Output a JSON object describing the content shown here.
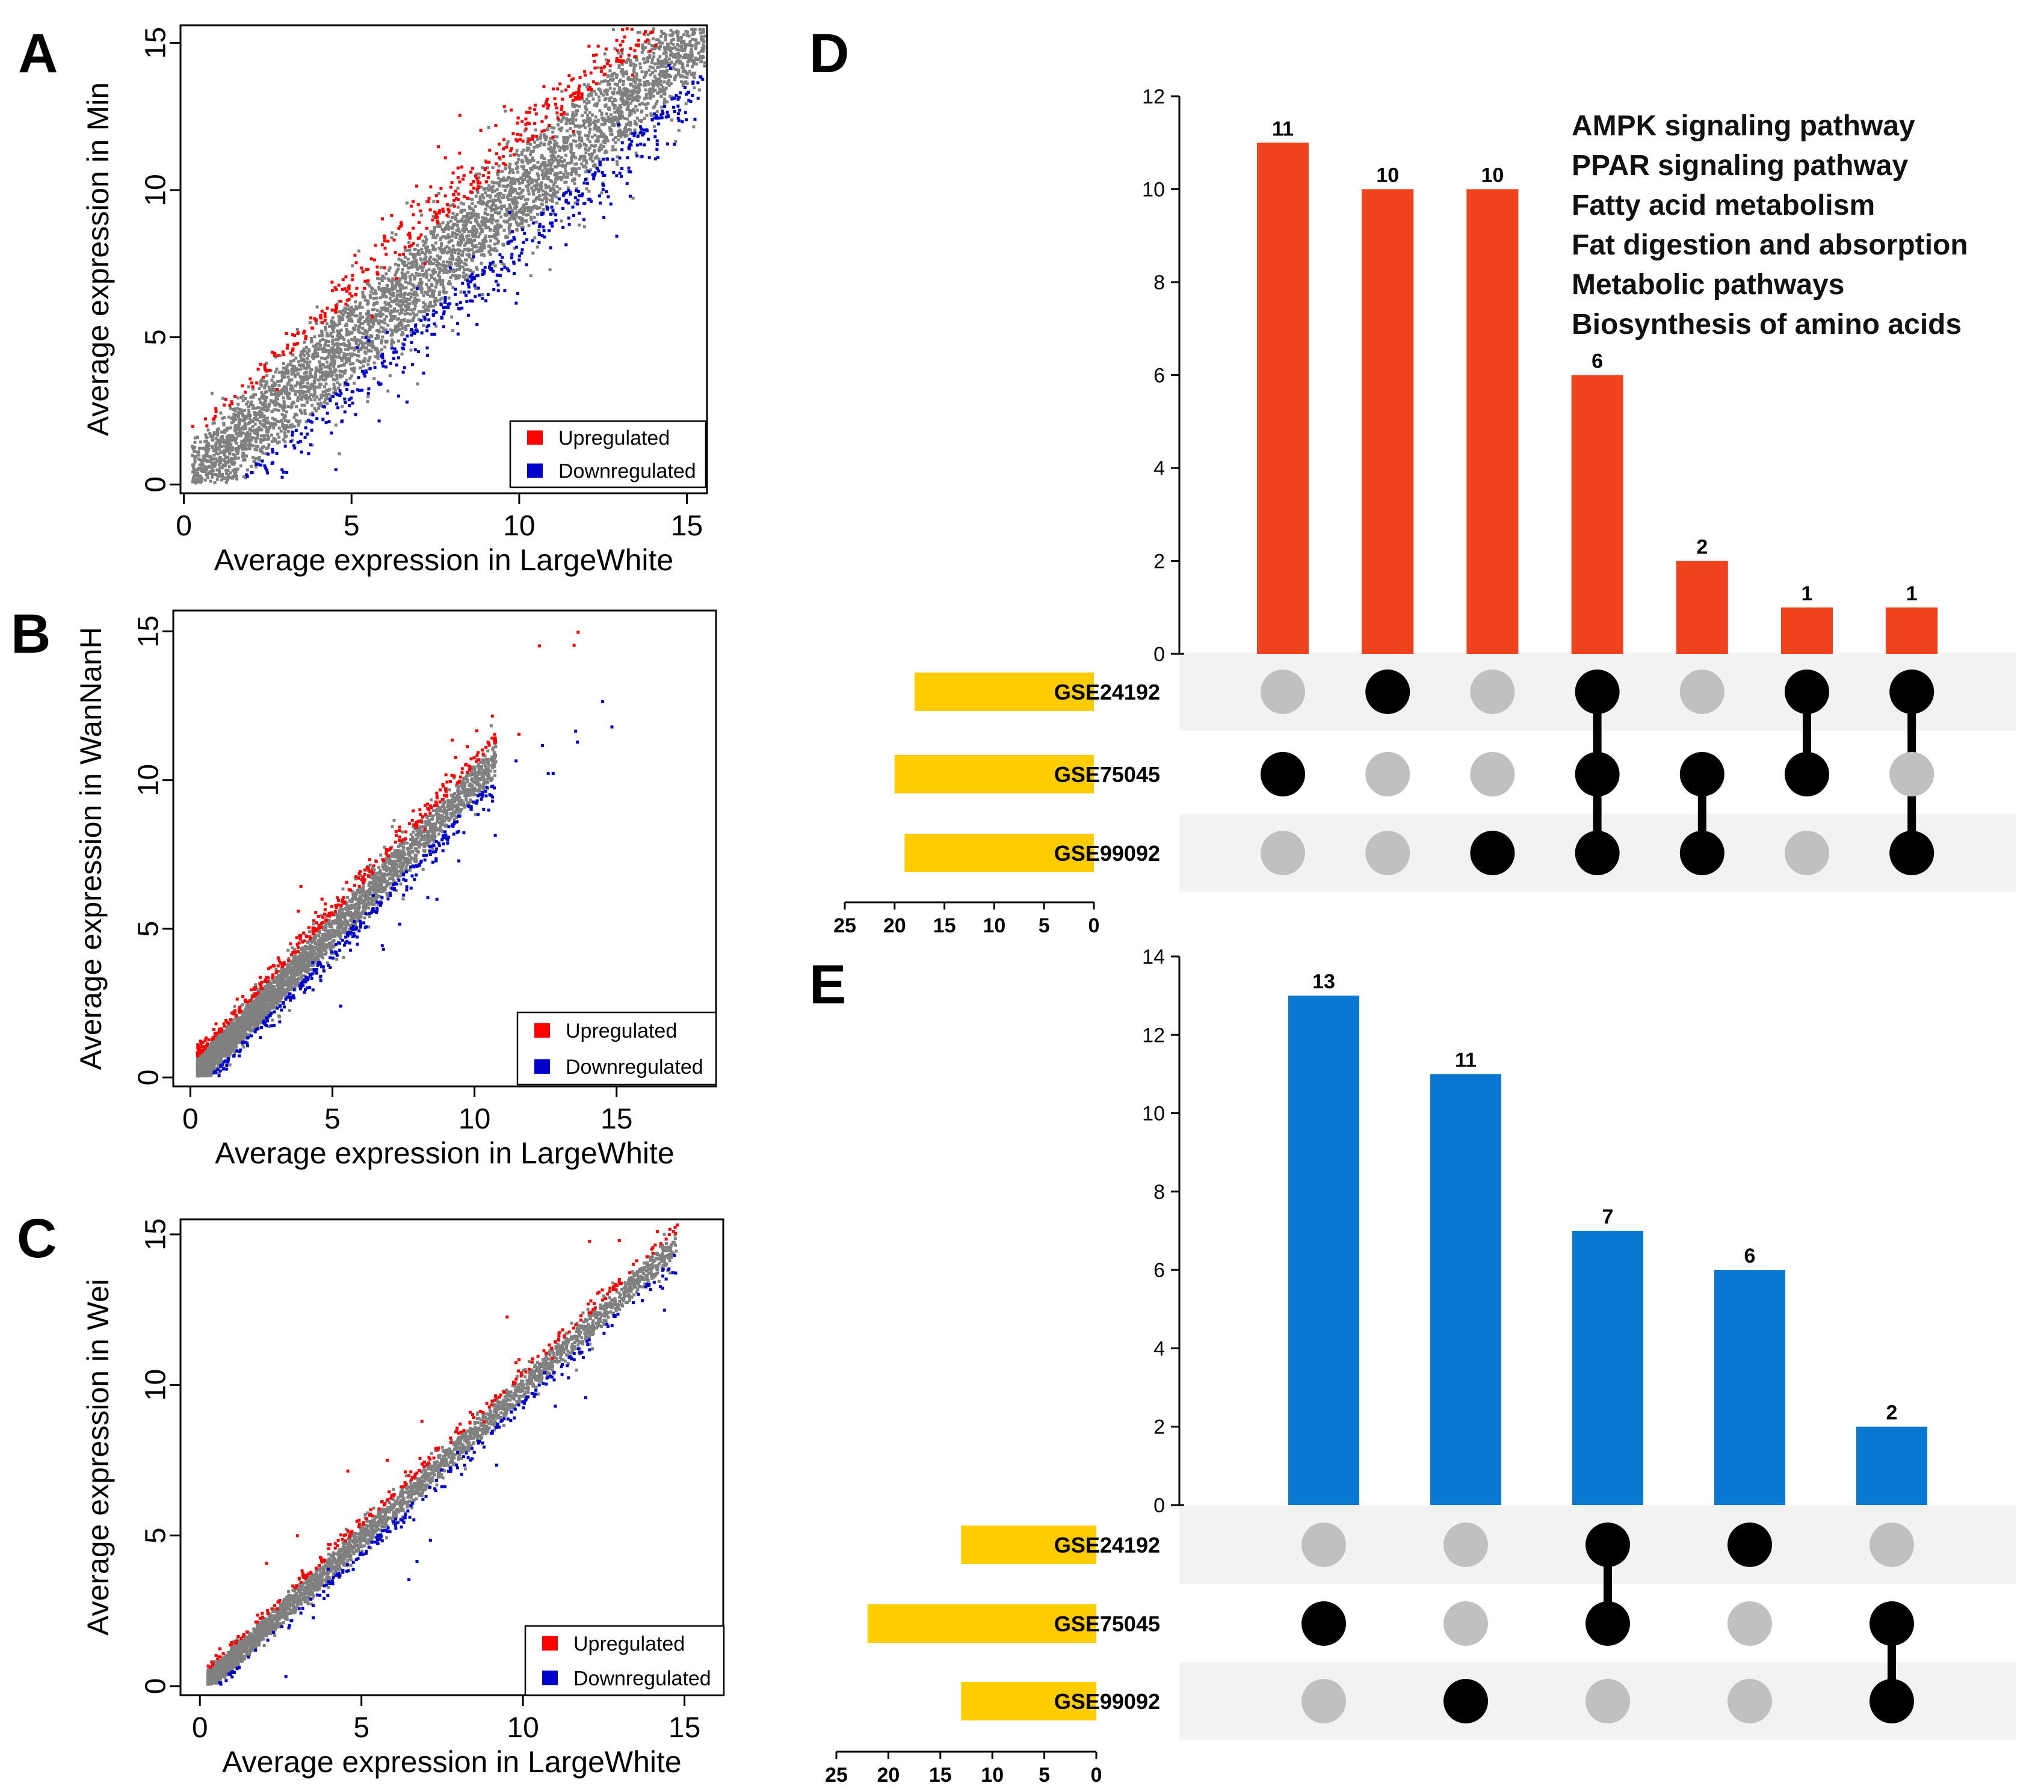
{
  "figure": {
    "colors": {
      "upregulated": "#ff0000",
      "downregulated": "#0000cc",
      "background_points": "#808080",
      "upset_bar_d": "#f0421c",
      "upset_bar_e": "#0a78d2",
      "set_size_bar": "#ffcc00",
      "dot_active": "#000000",
      "dot_inactive": "#c0c0c0",
      "matrix_stripe": "#f2f2f2"
    }
  },
  "chart_data": [
    {
      "panel": "A",
      "type": "scatter",
      "xlabel": "Average expression in LargeWhite",
      "ylabel": "Average expression in Min",
      "xticks": [
        "0",
        "5",
        "10",
        "15"
      ],
      "yticks": [
        "0",
        "5",
        "10",
        "15"
      ],
      "xlim": [
        -0.1,
        15.6
      ],
      "ylim": [
        -0.3,
        15.6
      ],
      "point_spread": "wide",
      "legend": {
        "position": "bottom-right",
        "items": [
          "Upregulated",
          "Downregulated"
        ]
      }
    },
    {
      "panel": "B",
      "type": "scatter",
      "xlabel": "Average expression in LargeWhite",
      "ylabel": "Average expression in WanNanH",
      "xticks": [
        "0",
        "5",
        "10",
        "15"
      ],
      "yticks": [
        "0",
        "5",
        "10",
        "15"
      ],
      "xlim": [
        -0.6,
        18.5
      ],
      "ylim": [
        -0.3,
        15.7
      ],
      "point_spread": "medium",
      "legend": {
        "position": "bottom-right",
        "items": [
          "Upregulated",
          "Downregulated"
        ]
      }
    },
    {
      "panel": "C",
      "type": "scatter",
      "xlabel": "Average expression in LargeWhite",
      "ylabel": "Average expression in Wei",
      "xticks": [
        "0",
        "5",
        "10",
        "15"
      ],
      "yticks": [
        "0",
        "5",
        "10",
        "15"
      ],
      "xlim": [
        -0.6,
        16.2
      ],
      "ylim": [
        -0.3,
        15.5
      ],
      "point_spread": "narrow",
      "legend": {
        "position": "bottom-right",
        "items": [
          "Upregulated",
          "Downregulated"
        ]
      }
    },
    {
      "panel": "D",
      "type": "bar",
      "subtype": "upset",
      "ylim": [
        0,
        12
      ],
      "yticks": [
        "0",
        "2",
        "4",
        "6",
        "8",
        "10",
        "12"
      ],
      "values": [
        11,
        10,
        10,
        6,
        2,
        1,
        1
      ],
      "value_labels": [
        "11",
        "10",
        "10",
        "6",
        "2",
        "1",
        "1"
      ],
      "sets": [
        "GSE24192",
        "GSE75045",
        "GSE99092"
      ],
      "set_sizes": [
        18,
        20,
        19
      ],
      "set_size_ticks": [
        "25",
        "20",
        "15",
        "10",
        "5",
        "0"
      ],
      "set_size_max": 25,
      "membership": [
        [
          0,
          1,
          0
        ],
        [
          1,
          0,
          0
        ],
        [
          0,
          0,
          1
        ],
        [
          1,
          1,
          1
        ],
        [
          0,
          1,
          1
        ],
        [
          1,
          1,
          0
        ],
        [
          1,
          0,
          1
        ]
      ],
      "annotations": [
        "AMPK signaling pathway",
        "PPAR signaling pathway",
        "Fatty acid metabolism",
        "Fat digestion and absorption",
        "Metabolic pathways",
        "Biosynthesis of amino acids"
      ]
    },
    {
      "panel": "E",
      "type": "bar",
      "subtype": "upset",
      "ylim": [
        0,
        14
      ],
      "yticks": [
        "0",
        "2",
        "4",
        "6",
        "8",
        "10",
        "12",
        "14"
      ],
      "values": [
        13,
        11,
        7,
        6,
        2
      ],
      "value_labels": [
        "13",
        "11",
        "7",
        "6",
        "2"
      ],
      "sets": [
        "GSE24192",
        "GSE75045",
        "GSE99092"
      ],
      "set_sizes": [
        13,
        22,
        13
      ],
      "set_size_ticks": [
        "25",
        "20",
        "15",
        "10",
        "5",
        "0"
      ],
      "set_size_max": 25,
      "membership": [
        [
          0,
          1,
          0
        ],
        [
          0,
          0,
          1
        ],
        [
          1,
          1,
          0
        ],
        [
          1,
          0,
          0
        ],
        [
          0,
          1,
          1
        ]
      ],
      "annotations": []
    }
  ]
}
